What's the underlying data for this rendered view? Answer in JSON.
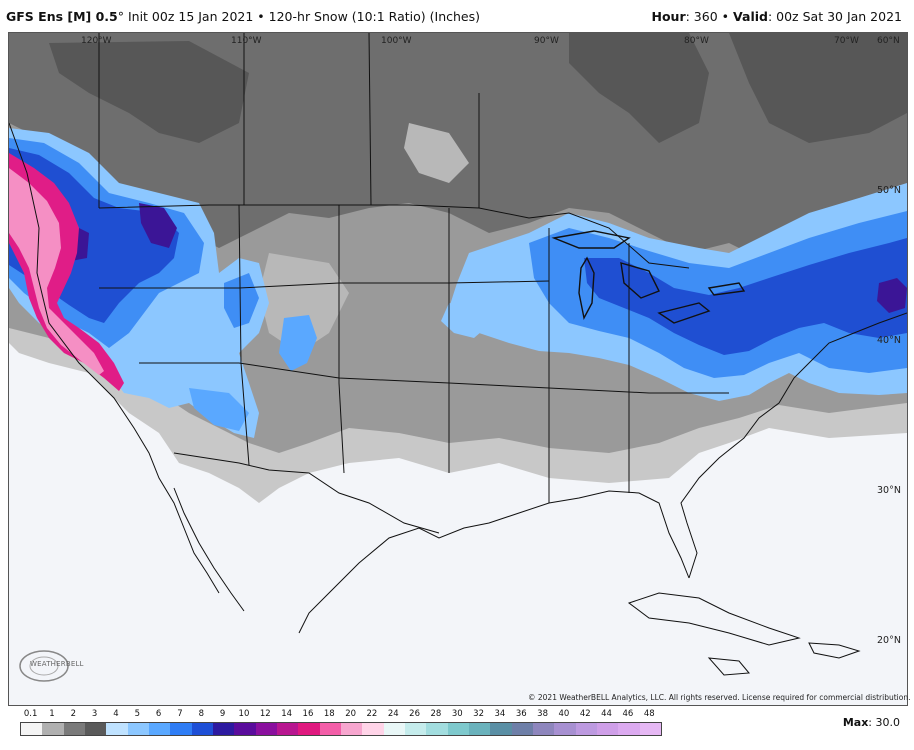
{
  "header": {
    "model": "GFS Ens [M] 0.5",
    "init": " Init 00z 15 Jan 2021",
    "product": "120-hr Snow (10:1 Ratio) (Inches)",
    "hour_label": "Hour",
    "hour_value": ": 360",
    "valid_label": "Valid",
    "valid_value": ": 00z Sat 30 Jan 2021"
  },
  "longitudes": [
    "120°W",
    "110°W",
    "100°W",
    "90°W",
    "80°W",
    "70°W",
    "60°N"
  ],
  "latitudes": [
    "50°N",
    "40°N",
    "30°N",
    "20°N"
  ],
  "colorbar": {
    "ticks": [
      "0.1",
      "1",
      "2",
      "3",
      "4",
      "5",
      "6",
      "7",
      "8",
      "9",
      "10",
      "12",
      "14",
      "16",
      "18",
      "20",
      "22",
      "24",
      "26",
      "28",
      "30",
      "32",
      "34",
      "36",
      "38",
      "40",
      "42",
      "44",
      "46",
      "48"
    ],
    "colors": [
      "#f4f4f4",
      "#b0b0b0",
      "#7a7a7a",
      "#5a5a5a",
      "#bfe2ff",
      "#8cc7ff",
      "#5aa8ff",
      "#2f7df5",
      "#1e4fd6",
      "#2d1aa0",
      "#5a0c9c",
      "#8a0f9e",
      "#b81690",
      "#e0197f",
      "#f35ea8",
      "#f7a6cf",
      "#ffd4e8",
      "#e9f7f7",
      "#c5ecec",
      "#a2dddf",
      "#7ec9cd",
      "#6ab2bc",
      "#5a8fa5",
      "#6e7fa8",
      "#8e86bd",
      "#a790d1",
      "#bd9ae0",
      "#cf9fe8",
      "#dcaaf0",
      "#e6b8f4"
    ]
  },
  "max_label": "Max",
  "max_value": ": 30.0",
  "copyright": "© 2021 WeatherBELL Analytics, LLC. All rights reserved. License required for commercial distribution.",
  "logo_text": "WEATHERBELL",
  "colors": {
    "no_snow": "#f3f5f9",
    "trace": "#c8c8c8",
    "light": "#9a9a9a",
    "moderate": "#6e6e6e",
    "heavy": "#575757",
    "blue_light": "#8cc7ff",
    "blue_mid": "#3f8ef5",
    "blue_dark": "#1f4fd2",
    "purple": "#3b1596",
    "magenta": "#e01d87",
    "pink": "#f58fc4"
  }
}
